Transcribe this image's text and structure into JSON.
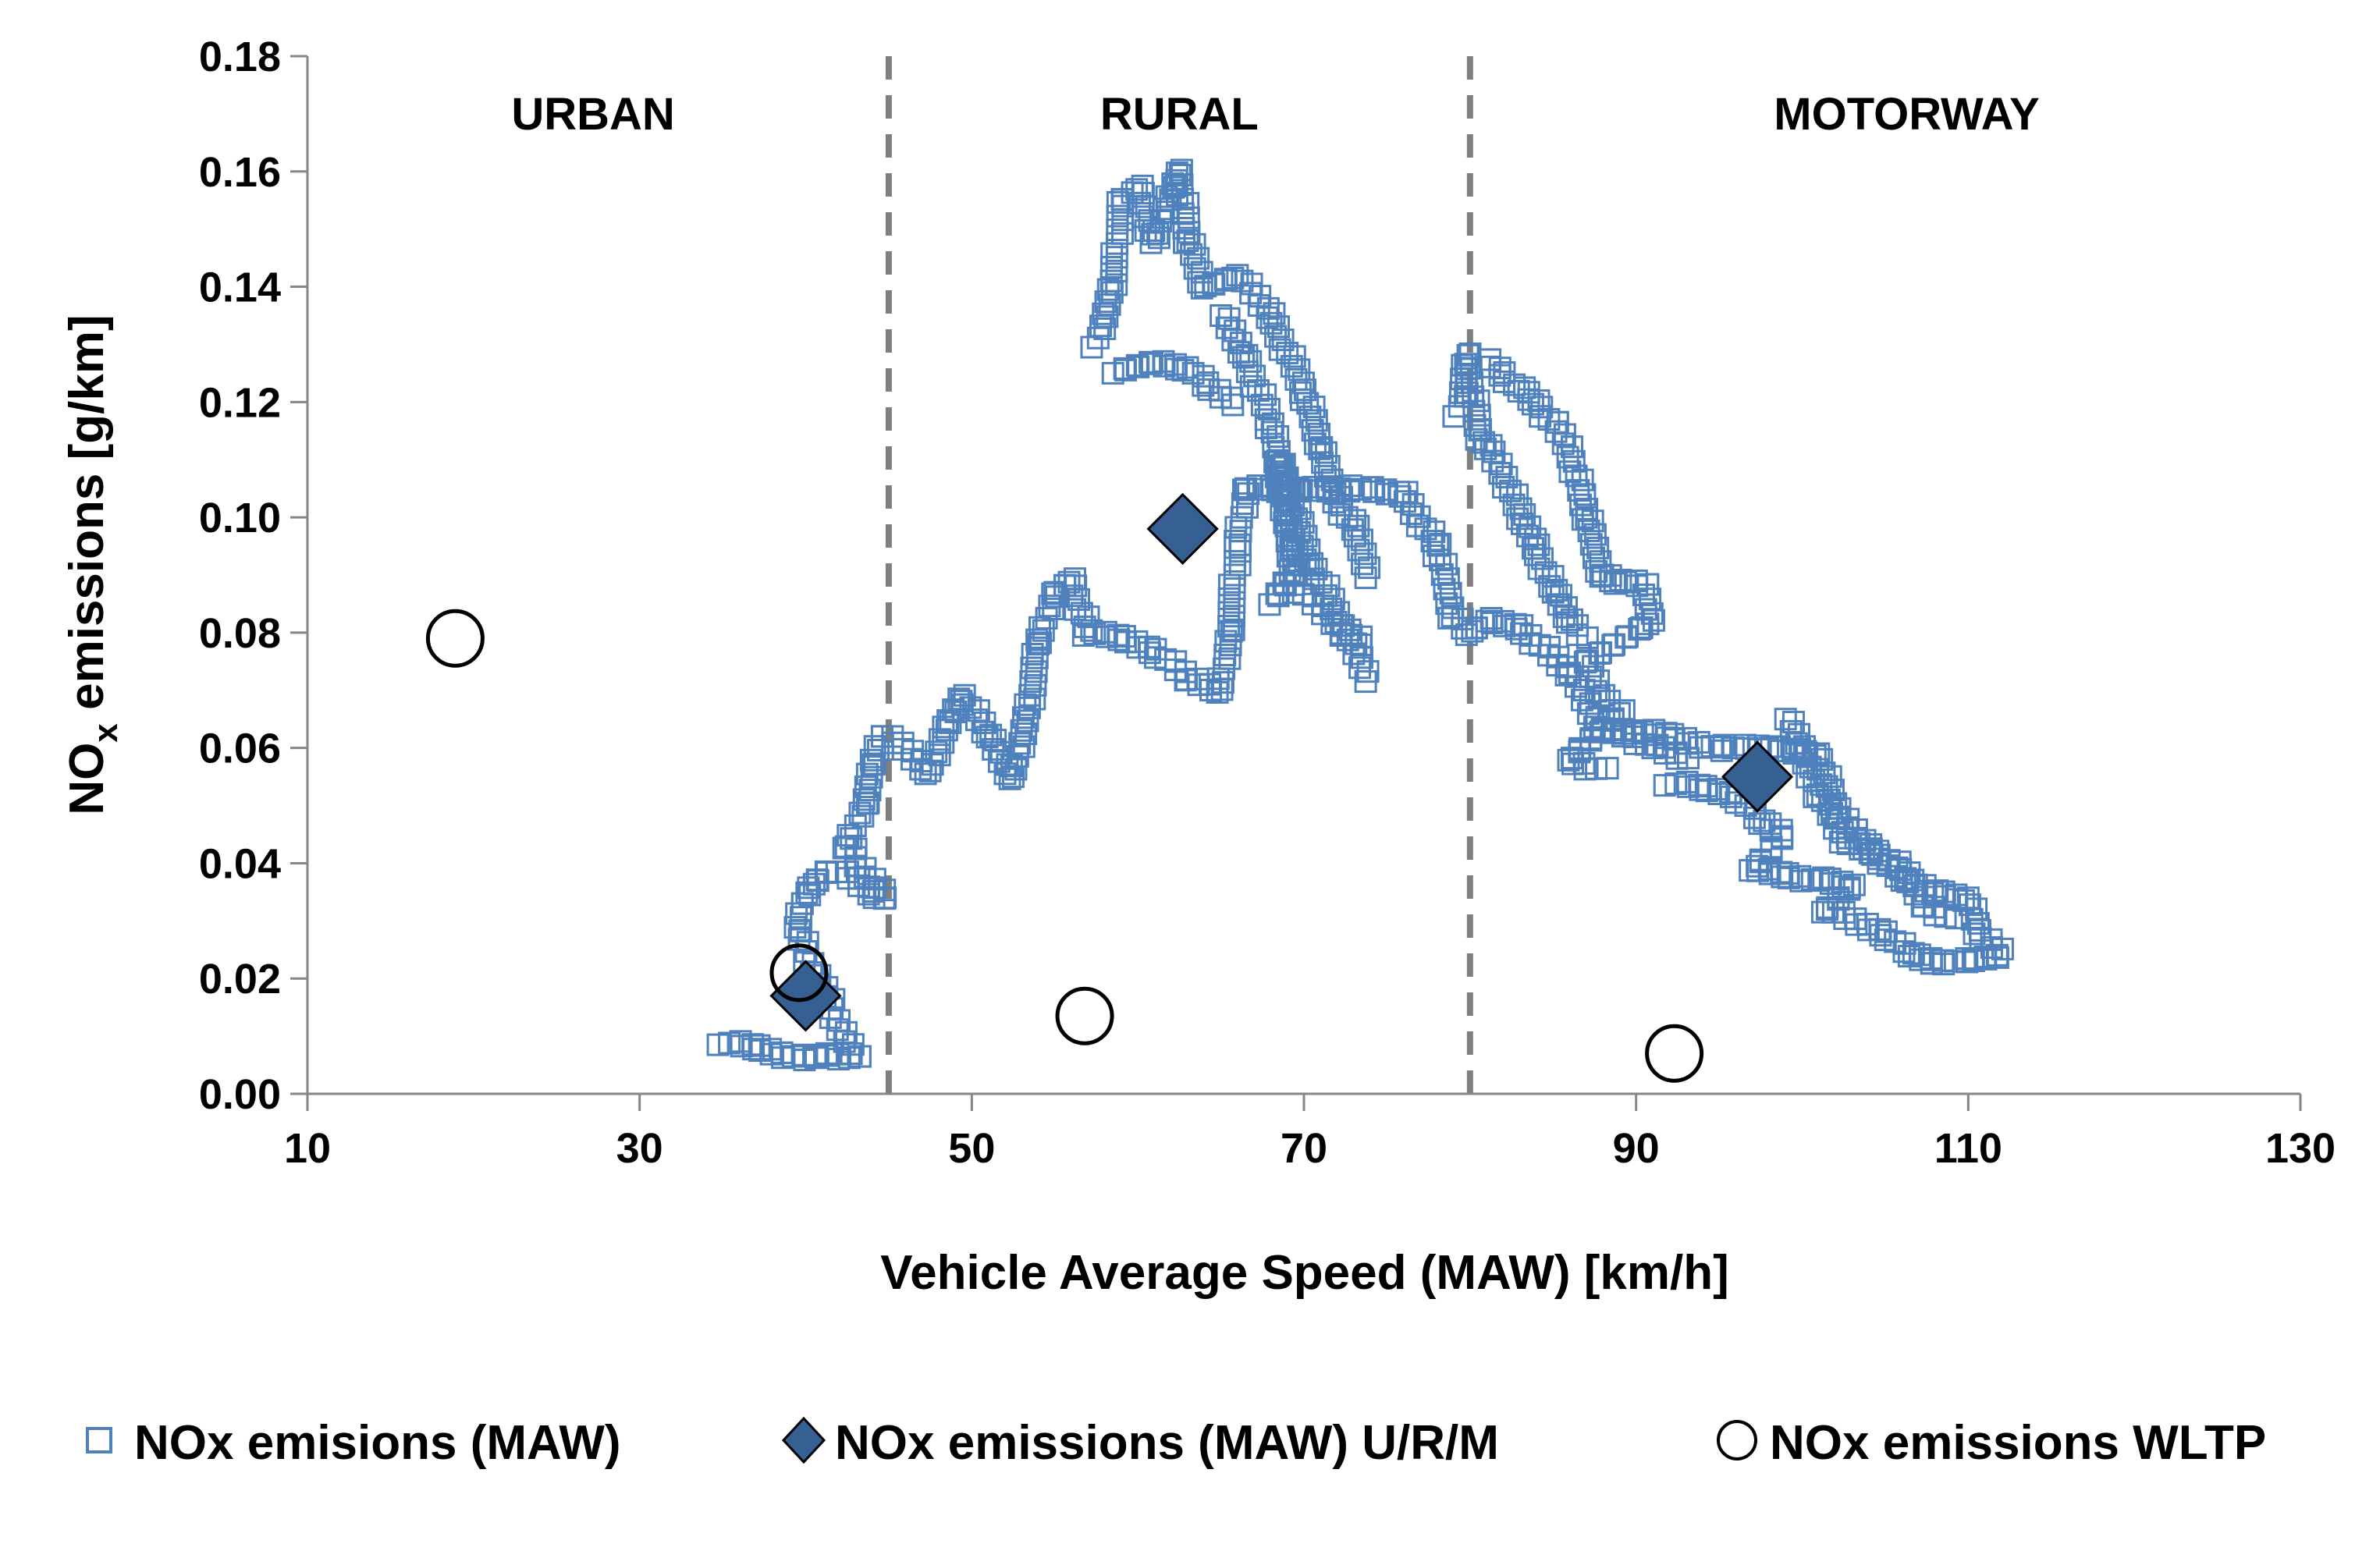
{
  "chart_data": {
    "type": "scatter",
    "title": "",
    "xlabel": "Vehicle Average Speed  (MAW) [km/h]",
    "ylabel_main": "NO",
    "ylabel_sub": "x",
    "ylabel_rest": " emissions [g/km]",
    "xlim": [
      10,
      130
    ],
    "ylim": [
      0,
      0.18
    ],
    "x_ticks": [
      10,
      30,
      50,
      70,
      90,
      110,
      130
    ],
    "y_ticks": [
      0,
      0.02,
      0.04,
      0.06,
      0.08,
      0.1,
      0.12,
      0.14,
      0.16,
      0.18
    ],
    "y_tick_labels": [
      "0.00",
      "0.02",
      "0.04",
      "0.06",
      "0.08",
      "0.10",
      "0.12",
      "0.14",
      "0.16",
      "0.18"
    ],
    "grid": false,
    "zones": [
      {
        "label": "URBAN",
        "center_x": 27.2
      },
      {
        "label": "RURAL",
        "center_x": 62.5
      },
      {
        "label": "MOTORWAY",
        "center_x": 106.3
      }
    ],
    "zone_boundaries": [
      45,
      80
    ],
    "label_y": 0.17,
    "colors": {
      "maw": "#4F81BD",
      "urm": "#376092",
      "wltp": "#000000",
      "boundary": "#7F7F7F"
    },
    "legend_position": "bottom",
    "series": [
      {
        "name": "NOx emisions (MAW)",
        "marker": "hollow-square",
        "trajectory": [
          [
            35,
            0.009
          ],
          [
            37,
            0.008
          ],
          [
            38.5,
            0.007
          ],
          [
            40,
            0.006
          ],
          [
            41.5,
            0.007
          ],
          [
            43,
            0.006
          ],
          [
            39.5,
            0.028
          ],
          [
            39.8,
            0.033
          ],
          [
            40.3,
            0.036
          ],
          [
            41.5,
            0.039
          ],
          [
            43,
            0.037
          ],
          [
            44,
            0.035
          ],
          [
            44.8,
            0.034
          ],
          [
            42.5,
            0.043
          ],
          [
            43.5,
            0.05
          ],
          [
            44,
            0.057
          ],
          [
            44.6,
            0.062
          ],
          [
            46,
            0.06
          ],
          [
            47.5,
            0.056
          ],
          [
            48.5,
            0.064
          ],
          [
            49.5,
            0.069
          ],
          [
            51,
            0.062
          ],
          [
            52.5,
            0.055
          ],
          [
            53.5,
            0.068
          ],
          [
            54,
            0.078
          ],
          [
            55,
            0.087
          ],
          [
            56,
            0.089
          ],
          [
            57,
            0.08
          ],
          [
            59,
            0.079
          ],
          [
            61,
            0.077
          ],
          [
            63,
            0.072
          ],
          [
            65,
            0.07
          ],
          [
            65.5,
            0.08
          ],
          [
            66,
            0.095
          ],
          [
            66.5,
            0.105
          ],
          [
            70,
            0.105
          ],
          [
            73,
            0.105
          ],
          [
            76,
            0.104
          ],
          [
            78,
            0.095
          ],
          [
            79,
            0.083
          ],
          [
            80,
            0.08
          ],
          [
            81,
            0.082
          ],
          [
            83,
            0.081
          ],
          [
            86,
            0.073
          ],
          [
            88,
            0.063
          ],
          [
            90,
            0.063
          ],
          [
            92,
            0.062
          ],
          [
            95,
            0.06
          ],
          [
            98,
            0.06
          ],
          [
            101,
            0.059
          ],
          [
            102,
            0.049
          ],
          [
            104,
            0.043
          ],
          [
            106,
            0.037
          ],
          [
            108,
            0.035
          ],
          [
            110,
            0.034
          ],
          [
            110.5,
            0.028
          ],
          [
            112,
            0.025
          ]
        ],
        "upper_trajectory": [
          [
            57.5,
            0.13
          ],
          [
            58.5,
            0.14
          ],
          [
            59,
            0.155
          ],
          [
            60,
            0.157
          ],
          [
            61,
            0.148
          ],
          [
            62,
            0.157
          ],
          [
            62.5,
            0.16
          ],
          [
            63,
            0.148
          ],
          [
            64,
            0.14
          ],
          [
            66,
            0.142
          ],
          [
            68,
            0.135
          ],
          [
            70,
            0.122
          ],
          [
            71,
            0.112
          ],
          [
            72,
            0.103
          ],
          [
            73,
            0.098
          ],
          [
            74,
            0.09
          ],
          [
            65,
            0.135
          ],
          [
            66.5,
            0.128
          ],
          [
            68,
            0.116
          ],
          [
            69,
            0.1
          ],
          [
            69.5,
            0.09
          ],
          [
            68.5,
            0.11
          ],
          [
            70.5,
            0.092
          ],
          [
            72.5,
            0.08
          ],
          [
            74,
            0.072
          ],
          [
            58.5,
            0.125
          ],
          [
            61,
            0.127
          ],
          [
            63,
            0.126
          ],
          [
            64,
            0.123
          ],
          [
            66,
            0.12
          ],
          [
            68,
            0.085
          ],
          [
            69,
            0.089
          ],
          [
            73.5,
            0.078
          ]
        ],
        "motorway_upper": [
          [
            79.3,
            0.118
          ],
          [
            79.8,
            0.128
          ],
          [
            80.5,
            0.115
          ],
          [
            81,
            0.112
          ],
          [
            82,
            0.108
          ],
          [
            83,
            0.1
          ],
          [
            84,
            0.095
          ],
          [
            85,
            0.087
          ],
          [
            86,
            0.082
          ],
          [
            87,
            0.079
          ],
          [
            81,
            0.127
          ],
          [
            82,
            0.125
          ],
          [
            83,
            0.122
          ],
          [
            84,
            0.12
          ],
          [
            85,
            0.116
          ],
          [
            86,
            0.112
          ],
          [
            87,
            0.1
          ],
          [
            88,
            0.09
          ],
          [
            89,
            0.089
          ],
          [
            90.5,
            0.088
          ],
          [
            91,
            0.082
          ],
          [
            87,
            0.075
          ],
          [
            88,
            0.069
          ],
          [
            89,
            0.066
          ],
          [
            86,
            0.058
          ],
          [
            88,
            0.056
          ]
        ],
        "motorway_lower": [
          [
            92,
            0.054
          ],
          [
            94,
            0.053
          ],
          [
            96,
            0.052
          ],
          [
            97.5,
            0.047
          ],
          [
            99,
            0.045
          ],
          [
            97,
            0.039
          ],
          [
            99,
            0.038
          ],
          [
            101,
            0.037
          ],
          [
            103,
            0.036
          ],
          [
            101.5,
            0.032
          ],
          [
            103,
            0.03
          ],
          [
            105,
            0.028
          ],
          [
            106.5,
            0.024
          ],
          [
            108,
            0.023
          ],
          [
            110,
            0.023
          ],
          [
            112,
            0.024
          ],
          [
            99,
            0.065
          ],
          [
            100,
            0.06
          ],
          [
            101,
            0.052
          ],
          [
            102.5,
            0.044
          ],
          [
            104.5,
            0.042
          ],
          [
            106,
            0.039
          ],
          [
            107.5,
            0.033
          ],
          [
            109,
            0.03
          ],
          [
            89,
            0.063
          ],
          [
            91,
            0.06
          ],
          [
            93,
            0.058
          ]
        ]
      },
      {
        "name": "NOx emissions (MAW) U/R/M",
        "marker": "diamond",
        "points": [
          [
            40,
            0.017
          ],
          [
            62.7,
            0.098
          ],
          [
            97.3,
            0.055
          ]
        ]
      },
      {
        "name": "NOx emissions WLTP",
        "marker": "circle",
        "points": [
          [
            18.9,
            0.079
          ],
          [
            39.6,
            0.021
          ],
          [
            56.8,
            0.0135
          ],
          [
            92.3,
            0.007
          ]
        ]
      }
    ]
  }
}
